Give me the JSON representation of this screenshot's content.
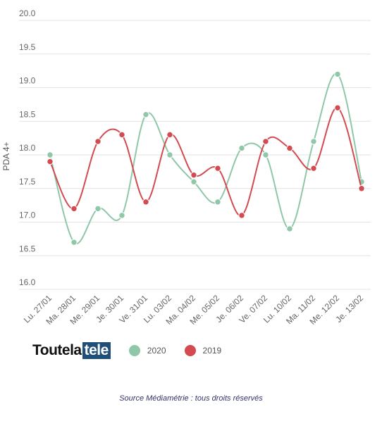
{
  "chart_data": {
    "type": "line",
    "categories": [
      "Lu. 27/01",
      "Ma. 28/01",
      "Me. 29/01",
      "Je. 30/01",
      "Ve. 31/01",
      "Lu. 03/02",
      "Ma. 04/02",
      "Me. 05/02",
      "Je. 06/02",
      "Ve. 07/02",
      "Lu. 10/02",
      "Ma. 11/02",
      "Me. 12/02",
      "Je. 13/02"
    ],
    "series": [
      {
        "name": "2020",
        "color": "#8fc7a8",
        "values": [
          18.0,
          16.7,
          17.2,
          17.1,
          18.6,
          18.0,
          17.6,
          17.3,
          18.1,
          18.0,
          16.9,
          18.2,
          19.2,
          17.6
        ]
      },
      {
        "name": "2019",
        "color": "#d24b51",
        "values": [
          17.9,
          17.2,
          18.2,
          18.3,
          17.3,
          18.3,
          17.7,
          17.8,
          17.1,
          18.2,
          18.1,
          17.8,
          18.7,
          17.5
        ]
      }
    ],
    "ylabel": "PDA 4+",
    "ylim": [
      16.0,
      20.0
    ],
    "yticks": [
      "16.0",
      "16.5",
      "17.0",
      "17.5",
      "18.0",
      "18.5",
      "19.0",
      "19.5",
      "20.0"
    ],
    "grid": true,
    "legend": "bottom"
  },
  "logo": {
    "part1": "Toutela",
    "part2": "tele"
  },
  "source": "Source Médiamétrie : tous droits réservés"
}
